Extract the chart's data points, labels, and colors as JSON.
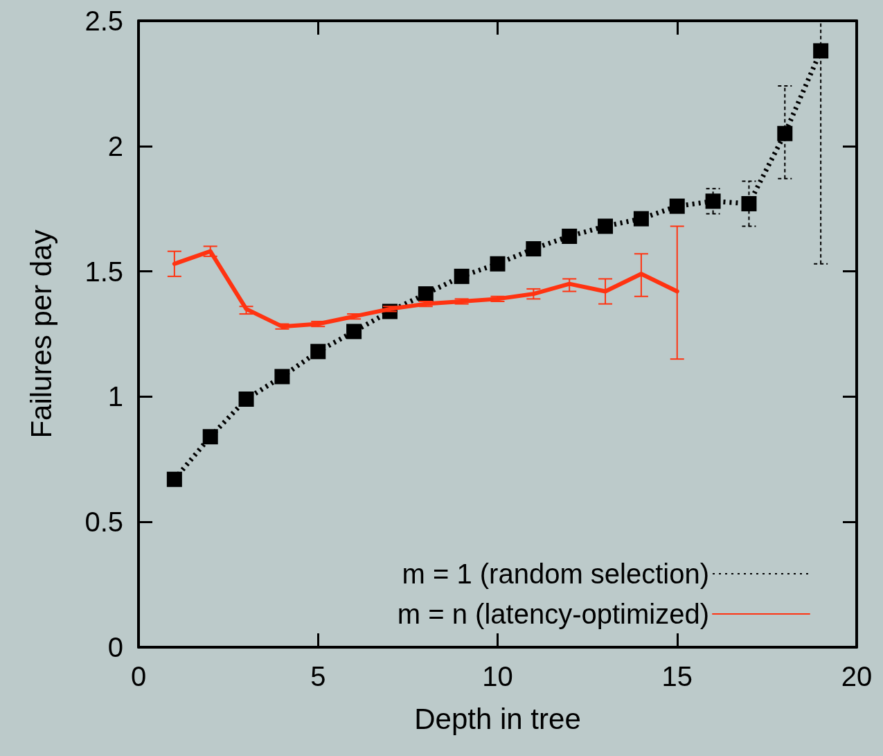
{
  "chart_data": {
    "type": "line",
    "xlabel": "Depth in tree",
    "ylabel": "Failures per day",
    "x": [
      1,
      2,
      3,
      4,
      5,
      6,
      7,
      8,
      9,
      10,
      11,
      12,
      13,
      14,
      15,
      16,
      17,
      18,
      19
    ],
    "series": [
      {
        "name": "m = 1 (random selection)",
        "color": "#000000",
        "marker": "square",
        "line_style": "dotted",
        "values": [
          0.67,
          0.84,
          0.99,
          1.08,
          1.18,
          1.26,
          1.34,
          1.41,
          1.48,
          1.53,
          1.59,
          1.64,
          1.68,
          1.71,
          1.76,
          1.78,
          1.77,
          2.05,
          2.38
        ],
        "errors": [
          null,
          null,
          null,
          null,
          null,
          null,
          null,
          null,
          null,
          null,
          null,
          null,
          null,
          null,
          null,
          [
            1.73,
            1.83
          ],
          [
            1.68,
            1.86
          ],
          [
            1.87,
            2.24
          ],
          [
            1.53,
            2.5
          ]
        ]
      },
      {
        "name": "m = n (latency-optimized)",
        "color": "#ff3311",
        "marker": "none",
        "line_style": "solid",
        "x": [
          1,
          2,
          3,
          4,
          5,
          6,
          7,
          8,
          9,
          10,
          11,
          12,
          13,
          14,
          15
        ],
        "values": [
          1.53,
          1.58,
          1.35,
          1.28,
          1.29,
          1.32,
          1.35,
          1.37,
          1.38,
          1.39,
          1.41,
          1.45,
          1.42,
          1.49,
          1.42
        ],
        "errors": [
          [
            1.48,
            1.58
          ],
          [
            1.56,
            1.6
          ],
          [
            1.33,
            1.36
          ],
          [
            1.27,
            1.29
          ],
          [
            1.28,
            1.3
          ],
          [
            1.31,
            1.33
          ],
          [
            1.34,
            1.36
          ],
          [
            1.36,
            1.38
          ],
          [
            1.37,
            1.39
          ],
          [
            1.38,
            1.4
          ],
          [
            1.39,
            1.43
          ],
          [
            1.42,
            1.47
          ],
          [
            1.37,
            1.47
          ],
          [
            1.4,
            1.57
          ],
          [
            1.15,
            1.68
          ]
        ]
      }
    ],
    "xlim": [
      0,
      20
    ],
    "xticks": [
      0,
      5,
      10,
      15,
      20
    ],
    "ylim": [
      0,
      2.5
    ],
    "yticks": [
      0,
      0.5,
      1,
      1.5,
      2,
      2.5
    ],
    "grid": false,
    "legend": "bottom right"
  }
}
